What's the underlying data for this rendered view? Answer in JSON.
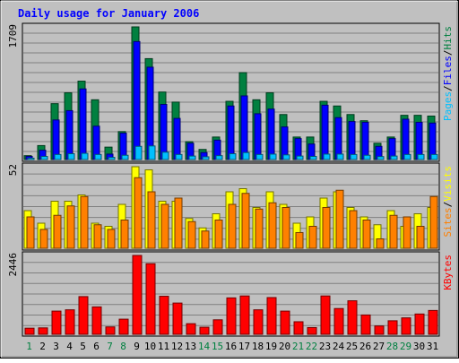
{
  "chart_data": {
    "type": "bar",
    "title": "Daily usage for January 2006",
    "days": [
      "1",
      "2",
      "3",
      "4",
      "5",
      "6",
      "7",
      "8",
      "9",
      "10",
      "11",
      "12",
      "13",
      "14",
      "15",
      "16",
      "17",
      "18",
      "19",
      "20",
      "21",
      "22",
      "23",
      "24",
      "25",
      "26",
      "27",
      "28",
      "29",
      "30",
      "31"
    ],
    "weekend_days": [
      "1",
      "7",
      "8",
      "14",
      "15",
      "21",
      "22",
      "28",
      "29"
    ],
    "panels": [
      {
        "id": "hits-panel",
        "ymax_label": "1709",
        "ymax": 1709,
        "legend": [
          {
            "label": "Pages",
            "color": "#00c0ff"
          },
          {
            "label": "/",
            "color": "#000000"
          },
          {
            "label": "Files",
            "color": "#0000ff"
          },
          {
            "label": "/",
            "color": "#000000"
          },
          {
            "label": "Hits",
            "color": "#008040"
          }
        ],
        "series": [
          {
            "name": "Hits",
            "color": "#008040",
            "values": [
              50,
              180,
              720,
              860,
              1010,
              770,
              160,
              360,
              1709,
              1300,
              870,
              740,
              230,
              130,
              290,
              750,
              1120,
              770,
              860,
              580,
              290,
              290,
              750,
              690,
              580,
              500,
              210,
              290,
              570,
              570,
              560
            ]
          },
          {
            "name": "Files",
            "color": "#0000ff",
            "values": [
              40,
              120,
              510,
              630,
              910,
              430,
              70,
              340,
              1520,
              1190,
              710,
              530,
              210,
              90,
              250,
              690,
              820,
              590,
              650,
              420,
              270,
              200,
              700,
              540,
              490,
              480,
              170,
              270,
              520,
              480,
              470
            ]
          },
          {
            "name": "Pages",
            "color": "#00c0ff",
            "values": [
              18,
              40,
              65,
              75,
              80,
              65,
              28,
              55,
              170,
              175,
              95,
              65,
              45,
              35,
              50,
              75,
              90,
              65,
              70,
              60,
              45,
              40,
              70,
              70,
              65,
              55,
              38,
              45,
              65,
              65,
              65
            ]
          }
        ]
      },
      {
        "id": "visits-panel",
        "ymax_label": "52",
        "ymax": 52,
        "legend": [
          {
            "label": "Sites",
            "color": "#ff8000"
          },
          {
            "label": "/",
            "color": "#000000"
          },
          {
            "label": "Visits",
            "color": "#ffff00"
          }
        ],
        "series": [
          {
            "name": "Visits",
            "color": "#ffff00",
            "values": [
              24,
              16,
              30,
              30,
              34,
              16,
              14,
              28,
              52,
              50,
              30,
              30,
              19,
              13,
              22,
              36,
              38,
              26,
              36,
              28,
              16,
              20,
              32,
              36,
              26,
              20,
              15,
              24,
              14,
              22,
              26
            ]
          },
          {
            "name": "Sites",
            "color": "#ff8000",
            "values": [
              20,
              12,
              21,
              27,
              33,
              15,
              12,
              18,
              45,
              36,
              28,
              32,
              17,
              11,
              18,
              28,
              35,
              25,
              29,
              26,
              10,
              14,
              26,
              37,
              24,
              18,
              6,
              21,
              20,
              14,
              33
            ]
          }
        ]
      },
      {
        "id": "kbytes-panel",
        "ymax_label": "2446",
        "ymax": 2446,
        "legend": [
          {
            "label": "KBytes",
            "color": "#ff0000"
          }
        ],
        "series": [
          {
            "name": "KBytes",
            "color": "#ff0000",
            "values": [
              190,
              200,
              720,
              760,
              1170,
              850,
              230,
              470,
              2446,
              2190,
              1180,
              970,
              330,
              220,
              450,
              1130,
              1190,
              760,
              1140,
              720,
              390,
              210,
              1190,
              800,
              1040,
              600,
              260,
              420,
              510,
              630,
              740
            ]
          }
        ]
      }
    ]
  }
}
